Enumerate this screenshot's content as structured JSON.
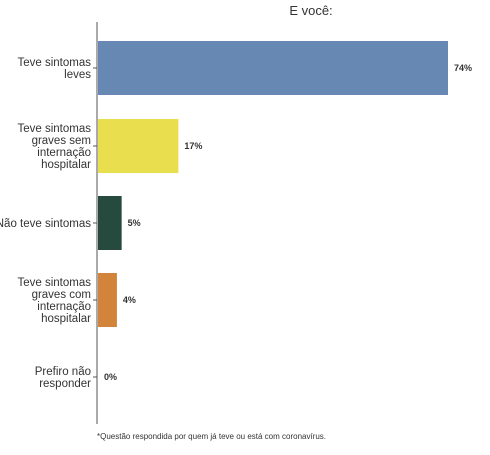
{
  "chart_data": {
    "type": "bar",
    "orientation": "horizontal",
    "title": "E você:",
    "categories": [
      [
        "Teve sintomas",
        "leves"
      ],
      [
        "Teve sintomas",
        "graves sem",
        "internação",
        "hospitalar"
      ],
      [
        "Não teve sintomas"
      ],
      [
        "Teve sintomas",
        "graves com",
        "internação",
        "hospitalar"
      ],
      [
        "Prefiro não",
        "responder"
      ]
    ],
    "values": [
      74,
      17,
      5,
      4,
      0
    ],
    "value_labels": [
      "74%",
      "17%",
      "5%",
      "4%",
      "0%"
    ],
    "colors": [
      "#6688b2",
      "#e9df4e",
      "#264a3e",
      "#d1843a",
      "#999999"
    ],
    "xlim": [
      0,
      74
    ],
    "grid": false,
    "legend": "none"
  },
  "footnote": "*Questão respondida por quem já teve ou está com coronavírus."
}
